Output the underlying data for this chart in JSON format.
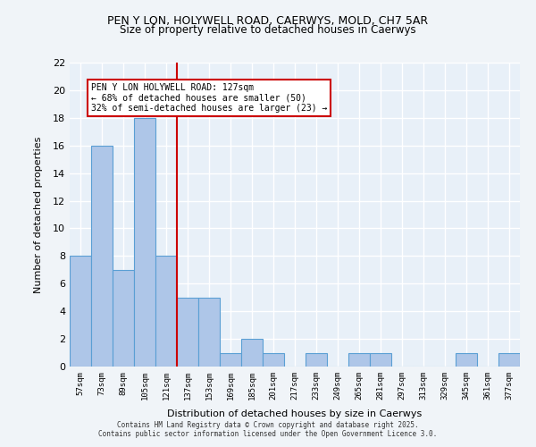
{
  "title1": "PEN Y LON, HOLYWELL ROAD, CAERWYS, MOLD, CH7 5AR",
  "title2": "Size of property relative to detached houses in Caerwys",
  "xlabel": "Distribution of detached houses by size in Caerwys",
  "ylabel": "Number of detached properties",
  "bins": [
    "57sqm",
    "73sqm",
    "89sqm",
    "105sqm",
    "121sqm",
    "137sqm",
    "153sqm",
    "169sqm",
    "185sqm",
    "201sqm",
    "217sqm",
    "233sqm",
    "249sqm",
    "265sqm",
    "281sqm",
    "297sqm",
    "313sqm",
    "329sqm",
    "345sqm",
    "361sqm",
    "377sqm"
  ],
  "values": [
    8,
    16,
    7,
    18,
    8,
    5,
    5,
    1,
    2,
    1,
    0,
    1,
    0,
    1,
    1,
    0,
    0,
    0,
    1,
    0,
    1
  ],
  "bar_color": "#aec6e8",
  "bar_edge_color": "#5a9fd4",
  "vline_x_index": 4,
  "vline_color": "#cc0000",
  "vline_label": "127sqm",
  "annotation_line1": "PEN Y LON HOLYWELL ROAD: 127sqm",
  "annotation_line2": "← 68% of detached houses are smaller (50)",
  "annotation_line3": "32% of semi-detached houses are larger (23) →",
  "annotation_box_color": "#ffffff",
  "annotation_border_color": "#cc0000",
  "ylim": [
    0,
    22
  ],
  "yticks": [
    0,
    2,
    4,
    6,
    8,
    10,
    12,
    14,
    16,
    18,
    20,
    22
  ],
  "bg_color": "#e8f0f8",
  "grid_color": "#ffffff",
  "footer1": "Contains HM Land Registry data © Crown copyright and database right 2025.",
  "footer2": "Contains public sector information licensed under the Open Government Licence 3.0."
}
